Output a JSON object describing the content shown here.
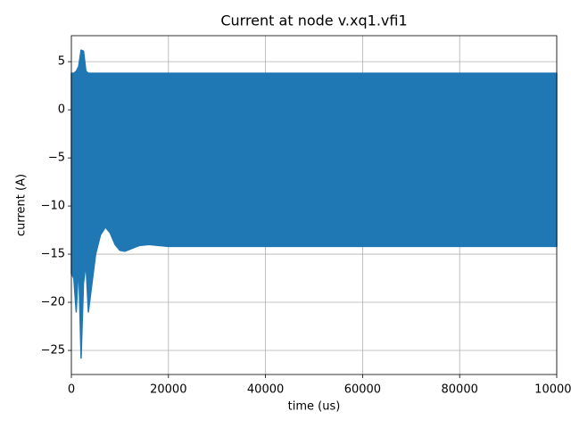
{
  "chart_data": {
    "type": "band",
    "title": "Current at node v.xq1.vfi1",
    "xlabel": "time (us)",
    "ylabel": "current (A)",
    "color": "#1f77b4",
    "grid": true,
    "xlim": [
      0,
      100000
    ],
    "ylim": [
      -27.5,
      7.7
    ],
    "xticks": [
      0,
      20000,
      40000,
      60000,
      80000,
      100000
    ],
    "yticks": [
      5,
      0,
      {
        "value": -5,
        "label": "−5"
      },
      {
        "value": -10,
        "label": "−10"
      },
      {
        "value": -15,
        "label": "−15"
      },
      {
        "value": -20,
        "label": "−20"
      },
      {
        "value": -25,
        "label": "−25"
      }
    ],
    "x": [
      0,
      500,
      1000,
      1500,
      2000,
      2500,
      3000,
      3500,
      4000,
      5000,
      6000,
      7000,
      8000,
      9000,
      10000,
      11000,
      12000,
      14000,
      16000,
      18000,
      20000,
      30000,
      100000
    ],
    "upper": [
      3.8,
      3.8,
      4,
      4.5,
      6.2,
      6.1,
      4,
      3.8,
      3.8,
      3.8,
      3.8,
      3.8,
      3.8,
      3.8,
      3.8,
      3.8,
      3.8,
      3.8,
      3.8,
      3.8,
      3.8,
      3.8,
      3.8
    ],
    "lower": [
      -17,
      -17.5,
      -21,
      -16,
      -25.8,
      -18,
      -16,
      -21,
      -19,
      -15,
      -13,
      -12.2,
      -12.8,
      -14,
      -14.6,
      -14.7,
      -14.5,
      -14.1,
      -14,
      -14.1,
      -14.2,
      -14.2,
      -14.2
    ]
  }
}
